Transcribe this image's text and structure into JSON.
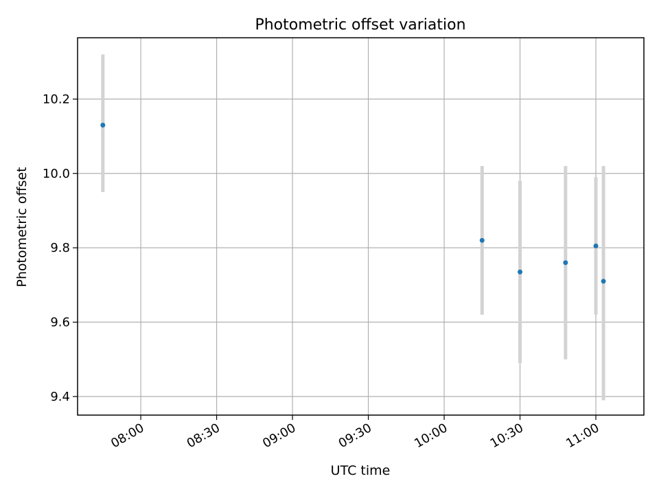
{
  "chart_data": {
    "type": "scatter",
    "title": "Photometric offset variation",
    "xlabel": "UTC time",
    "ylabel": "Photometric offset",
    "x_ticks": [
      "08:00",
      "08:30",
      "09:00",
      "09:30",
      "10:00",
      "10:30",
      "11:00"
    ],
    "y_ticks": [
      "9.4",
      "9.6",
      "9.8",
      "10.0",
      "10.2"
    ],
    "xlim": [
      "07:35",
      "11:19"
    ],
    "ylim": [
      9.35,
      10.365
    ],
    "grid": true,
    "series": [
      {
        "x": [
          "07:45",
          "10:15",
          "10:30",
          "10:48",
          "11:00",
          "11:03"
        ],
        "y": [
          10.13,
          9.82,
          9.735,
          9.76,
          9.805,
          9.71
        ],
        "err_low": [
          9.95,
          9.62,
          9.49,
          9.5,
          9.62,
          9.39
        ],
        "err_high": [
          10.32,
          10.02,
          9.98,
          10.02,
          9.99,
          10.02
        ]
      }
    ],
    "colors": {
      "marker": "#1f77b4",
      "errorbar": "#d3d3d3",
      "grid": "#b0b0b0",
      "axes": "#000000"
    }
  }
}
